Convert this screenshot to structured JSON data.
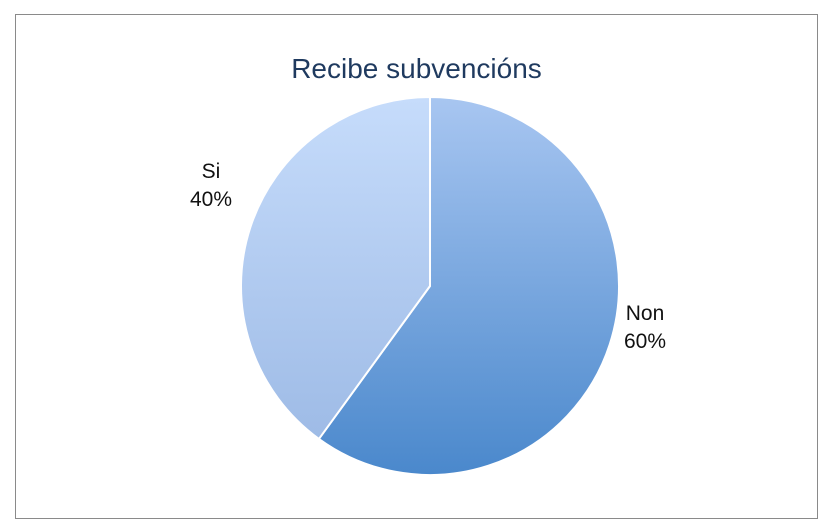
{
  "chart_data": {
    "type": "pie",
    "title": "Recibe subvencións",
    "categories": [
      "Non",
      "Si"
    ],
    "values": [
      60,
      40
    ],
    "data_labels": [
      {
        "category": "Non",
        "percent": "60%"
      },
      {
        "category": "Si",
        "percent": "40%"
      }
    ],
    "colors": {
      "Non": {
        "light": "#a8c6f1",
        "dark": "#4a88cc"
      },
      "Si": {
        "light": "#c6dcfb",
        "dark": "#9ebbe6"
      }
    },
    "start_angle": "12 o'clock",
    "direction": "clockwise",
    "legend": "none"
  }
}
